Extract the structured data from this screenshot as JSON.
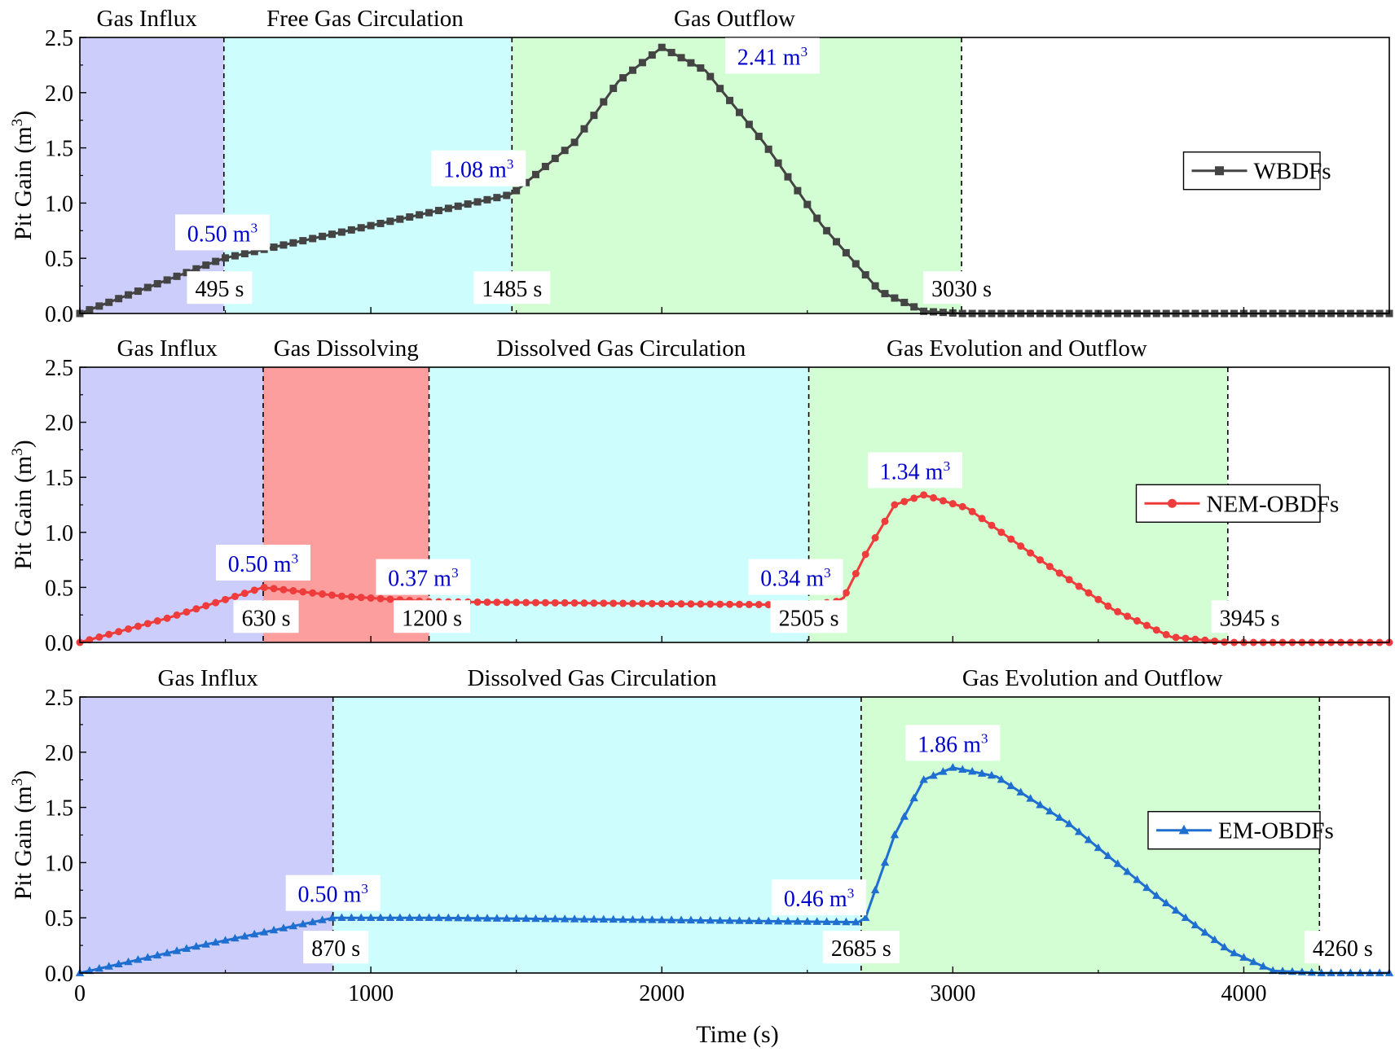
{
  "figure": {
    "x_axis_label": "Time (s)",
    "y_axis_label_base": "Pit Gain (m",
    "y_axis_label_sup": "3",
    "y_axis_label_close": ")"
  },
  "colors": {
    "influx": "#cdcdfb",
    "circulation": "#cdfdfd",
    "outflow": "#d3fdd3",
    "dissolving": "#fd9e9e",
    "annotation": "#0000cc",
    "wbdf": "#444444",
    "nem": "#ee3b3b",
    "em": "#1e6fd0"
  },
  "chart_data": [
    {
      "type": "line",
      "xlim": [
        0,
        4500
      ],
      "ylim": [
        0,
        2.5
      ],
      "yticks": [
        "0.0",
        "0.5",
        "1.0",
        "1.5",
        "2.0",
        "2.5"
      ],
      "xticks": [
        "0",
        "1000",
        "2000",
        "3000",
        "4000"
      ],
      "x_tick_values": [
        0,
        1000,
        2000,
        3000,
        4000
      ],
      "show_xtick_labels": false,
      "series": [
        {
          "name": "WBDFs",
          "color": "#444444",
          "marker": "square",
          "points": [
            [
              0,
              0
            ],
            [
              495,
              0.5
            ],
            [
              1485,
              1.08
            ],
            [
              1700,
              1.55
            ],
            [
              1850,
              2.1
            ],
            [
              2000,
              2.41
            ],
            [
              2150,
              2.2
            ],
            [
              2350,
              1.55
            ],
            [
              2550,
              0.8
            ],
            [
              2750,
              0.2
            ],
            [
              2900,
              0.02
            ],
            [
              3030,
              0.0
            ],
            [
              4500,
              0.0
            ]
          ]
        }
      ],
      "regions": [
        {
          "x0": 0,
          "x1": 495,
          "color_key": "influx"
        },
        {
          "x0": 495,
          "x1": 1485,
          "color_key": "circulation"
        },
        {
          "x0": 1485,
          "x1": 3030,
          "color_key": "outflow"
        }
      ],
      "dividers": [
        495,
        1485,
        3030
      ],
      "phase_labels": [
        {
          "text": "Gas Influx",
          "x": 230
        },
        {
          "text": "Free Gas Circulation",
          "x": 980
        },
        {
          "text": "Gas Outflow",
          "x": 2250
        }
      ],
      "time_labels": [
        {
          "text": "495 s",
          "x": 480,
          "y": 0.22
        },
        {
          "text": "1485 s",
          "x": 1485,
          "y": 0.22
        },
        {
          "text": "3030 s",
          "x": 3030,
          "y": 0.22
        }
      ],
      "value_labels": [
        {
          "base": "0.50 m",
          "sup": "3",
          "x": 490,
          "y": 0.72
        },
        {
          "base": "1.08 m",
          "sup": "3",
          "x": 1370,
          "y": 1.3
        },
        {
          "base": "2.41 m",
          "sup": "3",
          "x": 2380,
          "y": 2.32
        }
      ],
      "legend": {
        "label": "WBDFs",
        "y": 1.3
      }
    },
    {
      "type": "line",
      "xlim": [
        0,
        4500
      ],
      "ylim": [
        0,
        2.5
      ],
      "yticks": [
        "0.0",
        "0.5",
        "1.0",
        "1.5",
        "2.0",
        "2.5"
      ],
      "xticks": [
        "0",
        "1000",
        "2000",
        "3000",
        "4000"
      ],
      "x_tick_values": [
        0,
        1000,
        2000,
        3000,
        4000
      ],
      "show_xtick_labels": false,
      "series": [
        {
          "name": "NEM-OBDFs",
          "color": "#ee3b3b",
          "marker": "circle",
          "points": [
            [
              0,
              0
            ],
            [
              300,
              0.22
            ],
            [
              630,
              0.5
            ],
            [
              900,
              0.42
            ],
            [
              1200,
              0.37
            ],
            [
              2505,
              0.34
            ],
            [
              2620,
              0.38
            ],
            [
              2700,
              0.8
            ],
            [
              2800,
              1.25
            ],
            [
              2900,
              1.34
            ],
            [
              3050,
              1.22
            ],
            [
              3300,
              0.75
            ],
            [
              3550,
              0.3
            ],
            [
              3750,
              0.05
            ],
            [
              3945,
              0.0
            ],
            [
              4500,
              0.0
            ]
          ]
        }
      ],
      "regions": [
        {
          "x0": 0,
          "x1": 630,
          "color_key": "influx"
        },
        {
          "x0": 630,
          "x1": 1200,
          "color_key": "dissolving"
        },
        {
          "x0": 1200,
          "x1": 2505,
          "color_key": "circulation"
        },
        {
          "x0": 2505,
          "x1": 3945,
          "color_key": "outflow"
        }
      ],
      "dividers": [
        630,
        1200,
        2505,
        3945
      ],
      "phase_labels": [
        {
          "text": "Gas Influx",
          "x": 300
        },
        {
          "text": "Gas Dissolving",
          "x": 915
        },
        {
          "text": "Dissolved Gas Circulation",
          "x": 1860
        },
        {
          "text": "Gas Evolution and Outflow",
          "x": 3220
        }
      ],
      "time_labels": [
        {
          "text": "630 s",
          "x": 640,
          "y": 0.22
        },
        {
          "text": "1200 s",
          "x": 1210,
          "y": 0.22
        },
        {
          "text": "2505 s",
          "x": 2505,
          "y": 0.22
        }
      ],
      "extra_labels": [
        {
          "text": "3945 s",
          "x": 4020,
          "y": 0.22
        }
      ],
      "value_labels": [
        {
          "base": "0.50 m",
          "sup": "3",
          "x": 630,
          "y": 0.71
        },
        {
          "base": "0.37 m",
          "sup": "3",
          "x": 1180,
          "y": 0.58
        },
        {
          "base": "0.34 m",
          "sup": "3",
          "x": 2460,
          "y": 0.58
        },
        {
          "base": "1.34 m",
          "sup": "3",
          "x": 2870,
          "y": 1.55
        }
      ],
      "legend": {
        "label": "NEM-OBDFs",
        "y": 1.27
      }
    },
    {
      "type": "line",
      "xlim": [
        0,
        4500
      ],
      "ylim": [
        0,
        2.5
      ],
      "yticks": [
        "0.0",
        "0.5",
        "1.0",
        "1.5",
        "2.0",
        "2.5"
      ],
      "xticks": [
        "0",
        "1000",
        "2000",
        "3000",
        "4000"
      ],
      "x_tick_values": [
        0,
        1000,
        2000,
        3000,
        4000
      ],
      "show_xtick_labels": true,
      "series": [
        {
          "name": "EM-OBDFs",
          "color": "#1e6fd0",
          "marker": "triangle",
          "points": [
            [
              0,
              0
            ],
            [
              400,
              0.24
            ],
            [
              870,
              0.5
            ],
            [
              1200,
              0.5
            ],
            [
              2000,
              0.48
            ],
            [
              2685,
              0.46
            ],
            [
              2700,
              0.5
            ],
            [
              2800,
              1.25
            ],
            [
              2900,
              1.75
            ],
            [
              3000,
              1.86
            ],
            [
              3150,
              1.78
            ],
            [
              3400,
              1.35
            ],
            [
              3700,
              0.7
            ],
            [
              3950,
              0.2
            ],
            [
              4100,
              0.02
            ],
            [
              4260,
              0.0
            ],
            [
              4500,
              0.0
            ]
          ]
        }
      ],
      "regions": [
        {
          "x0": 0,
          "x1": 870,
          "color_key": "influx"
        },
        {
          "x0": 870,
          "x1": 2685,
          "color_key": "circulation"
        },
        {
          "x0": 2685,
          "x1": 4260,
          "color_key": "outflow"
        }
      ],
      "dividers": [
        870,
        2685,
        4260
      ],
      "phase_labels": [
        {
          "text": "Gas Influx",
          "x": 440
        },
        {
          "text": "Dissolved Gas Circulation",
          "x": 1760
        },
        {
          "text": "Gas Evolution and Outflow",
          "x": 3480
        }
      ],
      "time_labels": [
        {
          "text": "870 s",
          "x": 880,
          "y": 0.22
        },
        {
          "text": "2685 s",
          "x": 2685,
          "y": 0.22
        },
        {
          "text": "4260 s",
          "x": 4340,
          "y": 0.22
        }
      ],
      "value_labels": [
        {
          "base": "0.50 m",
          "sup": "3",
          "x": 870,
          "y": 0.71
        },
        {
          "base": "0.46 m",
          "sup": "3",
          "x": 2540,
          "y": 0.67
        },
        {
          "base": "1.86 m",
          "sup": "3",
          "x": 3000,
          "y": 2.07
        }
      ],
      "legend": {
        "label": "EM-OBDFs",
        "y": 1.3
      }
    }
  ]
}
